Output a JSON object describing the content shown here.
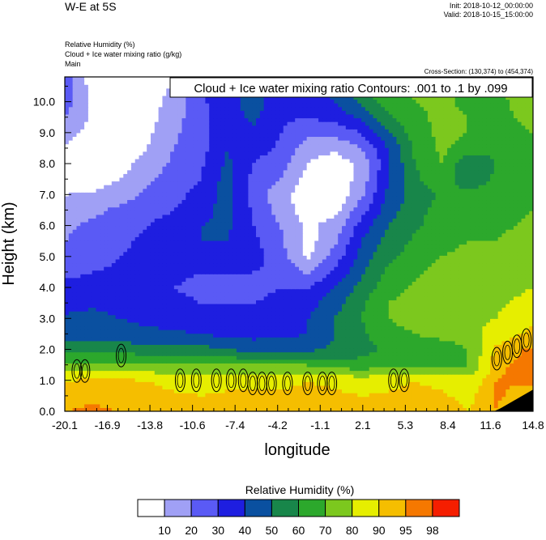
{
  "header": {
    "title": "W-E at 5S",
    "init": "Init: 2018-10-12_00:00:00",
    "valid": "Valid: 2018-10-15_15:00:00",
    "fields": [
      "Relative Humidity   (%)",
      "Cloud + Ice water mixing ratio   (g/kg)",
      "Main"
    ],
    "cross_section": "Cross-Section: (130,374) to (454,374)"
  },
  "chart_data": {
    "type": "heatmap",
    "title": "W-E at 5S",
    "contour_label": "Cloud + Ice water mixing ratio Contours: .001 to .1 by .099",
    "xlabel": "longitude",
    "ylabel": "Height (km)",
    "xlim": [
      -20.1,
      14.8
    ],
    "ylim": [
      0,
      10.8
    ],
    "x_ticks": [
      "-20.1",
      "-16.9",
      "-13.8",
      "-10.6",
      "-7.4",
      "-4.2",
      "-1.1",
      "2.1",
      "5.3",
      "8.4",
      "11.6",
      "14.8"
    ],
    "y_ticks": [
      "0.0",
      "1.0",
      "2.0",
      "3.0",
      "4.0",
      "5.0",
      "6.0",
      "7.0",
      "8.0",
      "9.0",
      "10.0"
    ],
    "legend": {
      "title": "Relative Humidity  (%)",
      "levels": [
        "10",
        "20",
        "30",
        "40",
        "50",
        "60",
        "70",
        "80",
        "90",
        "95",
        "98"
      ],
      "colors": [
        "#ffffff",
        "#a0a0f5",
        "#5a5af5",
        "#1e1ee0",
        "#0a50a0",
        "#18864a",
        "#2ca82c",
        "#7cc81e",
        "#e6ee00",
        "#f5be00",
        "#f57800",
        "#f51e00"
      ]
    },
    "rh_grid": {
      "x": [
        -20.1,
        -18.0,
        -16.0,
        -14.0,
        -12.0,
        -10.0,
        -8.0,
        -6.0,
        -4.0,
        -2.0,
        0.0,
        2.0,
        4.0,
        6.0,
        8.0,
        10.0,
        12.0,
        14.8
      ],
      "y": [
        0.0,
        0.5,
        1.0,
        1.5,
        2.0,
        2.5,
        3.0,
        3.5,
        4.0,
        4.5,
        5.0,
        5.5,
        6.0,
        6.5,
        7.0,
        7.5,
        8.0,
        8.5,
        9.0,
        9.5,
        10.0,
        10.8
      ],
      "values": [
        [
          95,
          96,
          95,
          94,
          93,
          92,
          93,
          94,
          93,
          94,
          94,
          92,
          93,
          94,
          93,
          90,
          95,
          80
        ],
        [
          93,
          94,
          93,
          92,
          91,
          90,
          91,
          92,
          91,
          92,
          92,
          90,
          91,
          92,
          91,
          88,
          96,
          92
        ],
        [
          90,
          92,
          92,
          90,
          88,
          88,
          88,
          88,
          88,
          90,
          88,
          85,
          88,
          90,
          88,
          85,
          95,
          96
        ],
        [
          72,
          74,
          74,
          72,
          70,
          70,
          70,
          70,
          70,
          70,
          66,
          64,
          68,
          70,
          68,
          70,
          94,
          97
        ],
        [
          56,
          56,
          56,
          54,
          54,
          54,
          50,
          48,
          48,
          48,
          52,
          56,
          62,
          66,
          66,
          70,
          92,
          96
        ],
        [
          46,
          46,
          44,
          42,
          42,
          40,
          38,
          36,
          38,
          40,
          50,
          58,
          66,
          70,
          72,
          74,
          86,
          92
        ],
        [
          42,
          44,
          40,
          38,
          36,
          34,
          34,
          32,
          34,
          40,
          50,
          60,
          70,
          74,
          76,
          78,
          80,
          88
        ],
        [
          36,
          38,
          36,
          34,
          32,
          30,
          30,
          30,
          32,
          36,
          46,
          58,
          70,
          75,
          78,
          80,
          78,
          84
        ],
        [
          32,
          34,
          34,
          32,
          30,
          28,
          28,
          28,
          30,
          30,
          40,
          54,
          66,
          72,
          76,
          78,
          76,
          80
        ],
        [
          28,
          30,
          32,
          32,
          32,
          30,
          30,
          30,
          28,
          18,
          32,
          48,
          62,
          68,
          74,
          76,
          74,
          78
        ],
        [
          24,
          26,
          30,
          32,
          34,
          36,
          36,
          34,
          24,
          8,
          24,
          44,
          58,
          64,
          70,
          72,
          72,
          76
        ],
        [
          20,
          24,
          28,
          32,
          36,
          40,
          40,
          32,
          22,
          6,
          18,
          40,
          54,
          62,
          68,
          70,
          70,
          74
        ],
        [
          18,
          22,
          26,
          30,
          34,
          40,
          42,
          30,
          20,
          8,
          14,
          34,
          50,
          58,
          66,
          68,
          68,
          72
        ],
        [
          14,
          18,
          22,
          26,
          30,
          36,
          44,
          28,
          16,
          4,
          6,
          26,
          46,
          56,
          64,
          66,
          66,
          70
        ],
        [
          10,
          12,
          16,
          22,
          26,
          34,
          44,
          26,
          14,
          4,
          2,
          18,
          42,
          54,
          62,
          64,
          64,
          68
        ],
        [
          6,
          4,
          10,
          18,
          24,
          30,
          44,
          26,
          20,
          6,
          2,
          14,
          40,
          58,
          66,
          52,
          62,
          66
        ],
        [
          4,
          2,
          6,
          14,
          22,
          28,
          42,
          30,
          24,
          10,
          4,
          12,
          38,
          60,
          70,
          50,
          60,
          64
        ],
        [
          8,
          4,
          4,
          10,
          20,
          26,
          40,
          34,
          28,
          14,
          12,
          20,
          40,
          62,
          72,
          66,
          62,
          66
        ],
        [
          14,
          6,
          2,
          8,
          18,
          26,
          38,
          38,
          30,
          22,
          22,
          30,
          48,
          66,
          72,
          70,
          66,
          70
        ],
        [
          20,
          8,
          2,
          6,
          16,
          26,
          36,
          42,
          32,
          30,
          34,
          42,
          58,
          68,
          72,
          70,
          68,
          72
        ],
        [
          26,
          6,
          2,
          4,
          14,
          28,
          36,
          44,
          34,
          34,
          40,
          52,
          66,
          70,
          72,
          68,
          68,
          74
        ],
        [
          28,
          4,
          2,
          2,
          10,
          30,
          38,
          46,
          36,
          36,
          44,
          58,
          70,
          72,
          70,
          68,
          70,
          76
        ]
      ]
    },
    "cloud_contours": [
      {
        "lon": -19.2,
        "h": 1.3
      },
      {
        "lon": -18.6,
        "h": 1.3
      },
      {
        "lon": -15.9,
        "h": 1.8
      },
      {
        "lon": -11.5,
        "h": 1.0
      },
      {
        "lon": -10.3,
        "h": 1.0
      },
      {
        "lon": -8.8,
        "h": 1.0
      },
      {
        "lon": -7.7,
        "h": 1.0
      },
      {
        "lon": -6.8,
        "h": 1.0
      },
      {
        "lon": -6.1,
        "h": 0.9
      },
      {
        "lon": -5.4,
        "h": 0.9
      },
      {
        "lon": -4.7,
        "h": 0.9
      },
      {
        "lon": -3.5,
        "h": 0.9
      },
      {
        "lon": -2.0,
        "h": 0.9
      },
      {
        "lon": -0.9,
        "h": 0.9
      },
      {
        "lon": -0.2,
        "h": 0.9
      },
      {
        "lon": 4.4,
        "h": 1.0
      },
      {
        "lon": 5.2,
        "h": 1.0
      },
      {
        "lon": 12.1,
        "h": 1.7
      },
      {
        "lon": 12.9,
        "h": 1.9
      },
      {
        "lon": 13.6,
        "h": 2.1
      },
      {
        "lon": 14.3,
        "h": 2.3
      }
    ],
    "terrain": [
      {
        "lon": 11.9,
        "h": 0.0
      },
      {
        "lon": 12.4,
        "h": 0.1
      },
      {
        "lon": 13.2,
        "h": 0.3
      },
      {
        "lon": 14.0,
        "h": 0.5
      },
      {
        "lon": 14.8,
        "h": 0.7
      }
    ]
  }
}
